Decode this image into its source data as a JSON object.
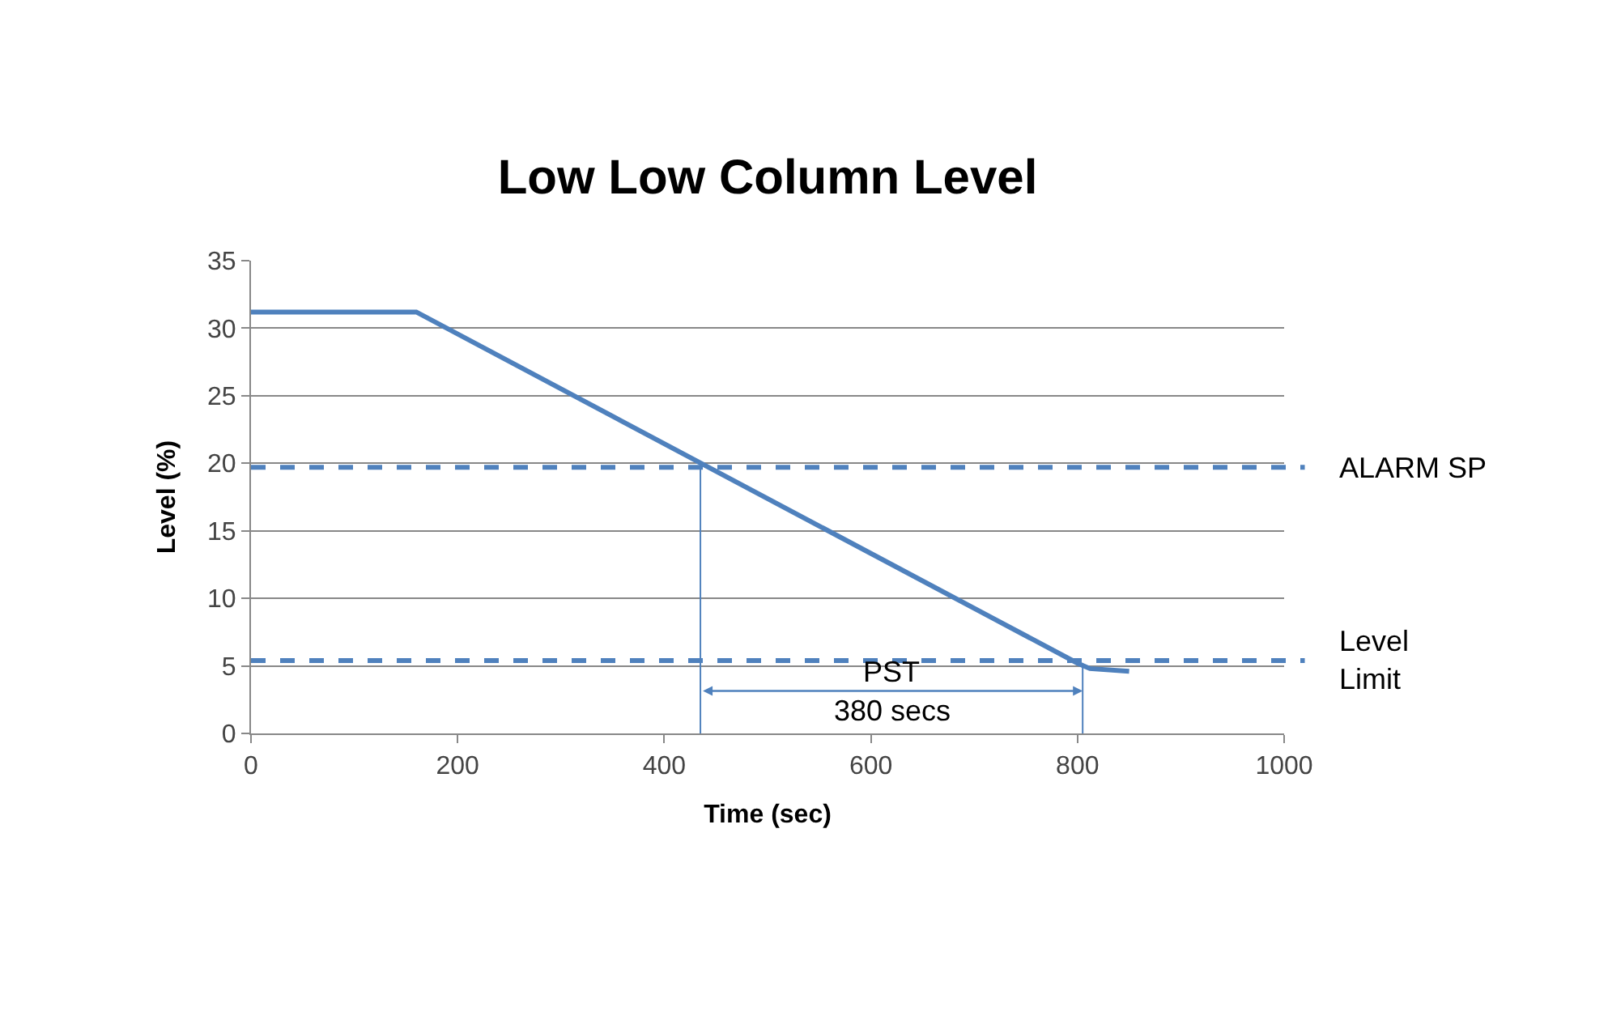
{
  "chart_data": {
    "type": "line",
    "title": "Low Low Column Level",
    "xlabel": "Time (sec)",
    "ylabel": "Level (%)",
    "xlim": [
      0,
      1000
    ],
    "xticks": [
      0,
      200,
      400,
      600,
      800,
      1000
    ],
    "ylim": [
      0,
      35
    ],
    "yticks": [
      0,
      5,
      10,
      15,
      20,
      25,
      30,
      35
    ],
    "grid": "y",
    "marker": "none",
    "line_style": "solid",
    "series": [
      {
        "color": "#4f81bd",
        "x": [
          0,
          160,
          800,
          812,
          850
        ],
        "values": [
          31.2,
          31.2,
          5.2,
          4.8,
          4.6
        ]
      },
      {
        "color": "#4f81bd",
        "x": [
          435,
          435
        ],
        "values": [
          0,
          20
        ]
      },
      {
        "color": "#4f81bd",
        "x": [
          805,
          805
        ],
        "values": [
          0,
          5.2
        ]
      }
    ],
    "ref_lines": [
      {
        "axis": "y",
        "value": 19.7,
        "label": "ALARM SP",
        "color": "#4f81bd",
        "line_style": "dashed"
      },
      {
        "axis": "y",
        "value": 5.4,
        "label": "Level Limit",
        "color": "#4f81bd",
        "line_style": "dashed"
      }
    ],
    "annotations": [
      "PST",
      "380 secs"
    ]
  }
}
